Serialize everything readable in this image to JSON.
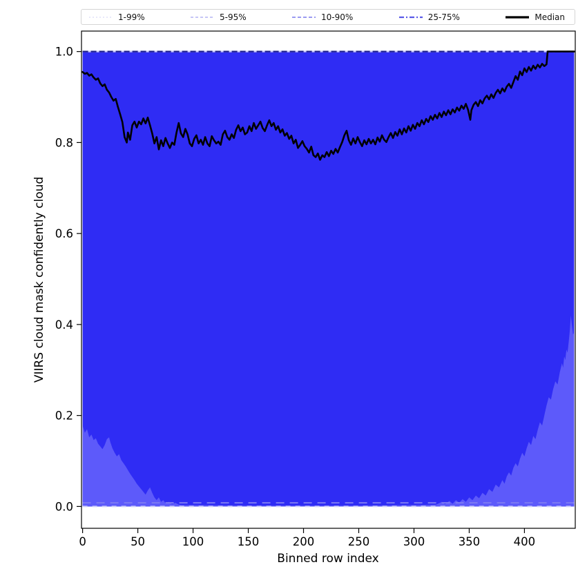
{
  "legend": {
    "entries": [
      {
        "label": "1-99%",
        "color": "#d9d9f8",
        "dash": "2 3",
        "width": 1.3
      },
      {
        "label": "5-95%",
        "color": "#b4b4f3",
        "dash": "4 3",
        "width": 1.4
      },
      {
        "label": "10-90%",
        "color": "#8c8cef",
        "dash": "5 3",
        "width": 1.7
      },
      {
        "label": "25-75%",
        "color": "#5959e8",
        "dash": "7 3 2 3",
        "width": 2.2
      },
      {
        "label": "Median",
        "color": "#000000",
        "dash": "",
        "width": 3.2
      }
    ]
  },
  "chart_data": {
    "type": "line",
    "subtype": "fan-chart (median with percentile bands)",
    "title": "",
    "xlabel": "Binned row index",
    "ylabel": "VIIRS cloud mask confidently cloud",
    "xlim": [
      -1,
      446
    ],
    "ylim": [
      -0.048,
      1.045
    ],
    "x_data_range": [
      0,
      445
    ],
    "xticks": [
      0,
      50,
      100,
      150,
      200,
      250,
      300,
      350,
      400
    ],
    "yticks": [
      0.0,
      0.2,
      0.4,
      0.6,
      0.8,
      1.0
    ],
    "ytick_labels": [
      "0.0",
      "0.2",
      "0.4",
      "0.6",
      "0.8",
      "1.0"
    ],
    "grid": false,
    "legend_position": "top, outside axes, horizontal",
    "colors": {
      "fill_dark": "#2f2cf4",
      "fill_light": "#5d5afa",
      "top_dash_navy": "#1d1d8f",
      "top_dash_light": "#c4c4f8",
      "bottom_dash_mid": "#7d7af2",
      "bottom_dash_light": "#cfcffb",
      "median_line": "#000000"
    },
    "percentile_bands": {
      "upper_bound_all_percentiles": 1.0,
      "p1_lower_approx": 0.0,
      "p5_lower": [
        [
          0,
          0.178
        ],
        [
          2,
          0.162
        ],
        [
          4,
          0.17
        ],
        [
          6,
          0.152
        ],
        [
          8,
          0.158
        ],
        [
          10,
          0.146
        ],
        [
          12,
          0.15
        ],
        [
          14,
          0.138
        ],
        [
          16,
          0.132
        ],
        [
          18,
          0.126
        ],
        [
          20,
          0.135
        ],
        [
          22,
          0.148
        ],
        [
          24,
          0.152
        ],
        [
          25,
          0.142
        ],
        [
          27,
          0.128
        ],
        [
          29,
          0.118
        ],
        [
          31,
          0.11
        ],
        [
          33,
          0.115
        ],
        [
          35,
          0.102
        ],
        [
          37,
          0.095
        ],
        [
          39,
          0.088
        ],
        [
          41,
          0.08
        ],
        [
          43,
          0.072
        ],
        [
          45,
          0.065
        ],
        [
          47,
          0.058
        ],
        [
          49,
          0.05
        ],
        [
          51,
          0.044
        ],
        [
          53,
          0.038
        ],
        [
          55,
          0.032
        ],
        [
          57,
          0.026
        ],
        [
          59,
          0.035
        ],
        [
          61,
          0.042
        ],
        [
          63,
          0.03
        ],
        [
          65,
          0.02
        ],
        [
          67,
          0.014
        ],
        [
          69,
          0.02
        ],
        [
          71,
          0.01
        ],
        [
          73,
          0.014
        ],
        [
          75,
          0.007
        ],
        [
          78,
          0.01
        ],
        [
          81,
          0.005
        ],
        [
          84,
          0.008
        ],
        [
          87,
          0.004
        ],
        [
          90,
          0.003
        ],
        [
          100,
          0.003
        ],
        [
          150,
          0.002
        ],
        [
          200,
          0.002
        ],
        [
          250,
          0.002
        ],
        [
          300,
          0.003
        ],
        [
          320,
          0.004
        ],
        [
          325,
          0.01
        ],
        [
          328,
          0.005
        ],
        [
          332,
          0.012
        ],
        [
          335,
          0.006
        ],
        [
          338,
          0.014
        ],
        [
          341,
          0.008
        ],
        [
          344,
          0.016
        ],
        [
          347,
          0.01
        ],
        [
          350,
          0.02
        ],
        [
          353,
          0.014
        ],
        [
          356,
          0.024
        ],
        [
          359,
          0.018
        ],
        [
          362,
          0.03
        ],
        [
          365,
          0.024
        ],
        [
          368,
          0.038
        ],
        [
          371,
          0.032
        ],
        [
          374,
          0.048
        ],
        [
          377,
          0.042
        ],
        [
          380,
          0.058
        ],
        [
          382,
          0.05
        ],
        [
          384,
          0.066
        ],
        [
          386,
          0.075
        ],
        [
          388,
          0.068
        ],
        [
          390,
          0.085
        ],
        [
          392,
          0.095
        ],
        [
          394,
          0.088
        ],
        [
          396,
          0.105
        ],
        [
          398,
          0.118
        ],
        [
          400,
          0.11
        ],
        [
          402,
          0.128
        ],
        [
          404,
          0.142
        ],
        [
          406,
          0.135
        ],
        [
          408,
          0.155
        ],
        [
          410,
          0.148
        ],
        [
          412,
          0.168
        ],
        [
          414,
          0.185
        ],
        [
          416,
          0.178
        ],
        [
          418,
          0.2
        ],
        [
          420,
          0.222
        ],
        [
          422,
          0.24
        ],
        [
          424,
          0.235
        ],
        [
          426,
          0.258
        ],
        [
          428,
          0.275
        ],
        [
          430,
          0.268
        ],
        [
          432,
          0.295
        ],
        [
          434,
          0.315
        ],
        [
          435,
          0.305
        ],
        [
          436,
          0.33
        ],
        [
          437,
          0.322
        ],
        [
          438,
          0.345
        ],
        [
          439,
          0.338
        ],
        [
          440,
          0.36
        ],
        [
          441,
          0.385
        ],
        [
          442,
          0.42
        ],
        [
          443,
          0.398
        ],
        [
          444,
          0.378
        ],
        [
          445,
          0.382
        ]
      ]
    },
    "median": [
      [
        0,
        0.955
      ],
      [
        2,
        0.951
      ],
      [
        4,
        0.953
      ],
      [
        6,
        0.947
      ],
      [
        8,
        0.95
      ],
      [
        10,
        0.943
      ],
      [
        12,
        0.938
      ],
      [
        14,
        0.941
      ],
      [
        16,
        0.93
      ],
      [
        18,
        0.924
      ],
      [
        20,
        0.928
      ],
      [
        22,
        0.916
      ],
      [
        24,
        0.91
      ],
      [
        26,
        0.9
      ],
      [
        28,
        0.892
      ],
      [
        30,
        0.896
      ],
      [
        32,
        0.878
      ],
      [
        34,
        0.862
      ],
      [
        36,
        0.845
      ],
      [
        38,
        0.812
      ],
      [
        40,
        0.8
      ],
      [
        41,
        0.822
      ],
      [
        43,
        0.806
      ],
      [
        45,
        0.838
      ],
      [
        47,
        0.846
      ],
      [
        49,
        0.833
      ],
      [
        51,
        0.846
      ],
      [
        53,
        0.84
      ],
      [
        55,
        0.853
      ],
      [
        57,
        0.842
      ],
      [
        59,
        0.855
      ],
      [
        61,
        0.838
      ],
      [
        63,
        0.82
      ],
      [
        65,
        0.798
      ],
      [
        67,
        0.812
      ],
      [
        69,
        0.785
      ],
      [
        71,
        0.805
      ],
      [
        73,
        0.792
      ],
      [
        75,
        0.81
      ],
      [
        77,
        0.798
      ],
      [
        79,
        0.788
      ],
      [
        81,
        0.8
      ],
      [
        83,
        0.795
      ],
      [
        85,
        0.822
      ],
      [
        87,
        0.843
      ],
      [
        89,
        0.82
      ],
      [
        91,
        0.812
      ],
      [
        93,
        0.83
      ],
      [
        95,
        0.818
      ],
      [
        97,
        0.798
      ],
      [
        99,
        0.792
      ],
      [
        101,
        0.808
      ],
      [
        103,
        0.816
      ],
      [
        105,
        0.798
      ],
      [
        107,
        0.806
      ],
      [
        109,
        0.795
      ],
      [
        111,
        0.812
      ],
      [
        113,
        0.798
      ],
      [
        115,
        0.792
      ],
      [
        117,
        0.814
      ],
      [
        119,
        0.805
      ],
      [
        121,
        0.798
      ],
      [
        123,
        0.802
      ],
      [
        125,
        0.795
      ],
      [
        127,
        0.818
      ],
      [
        129,
        0.826
      ],
      [
        131,
        0.812
      ],
      [
        133,
        0.806
      ],
      [
        135,
        0.818
      ],
      [
        137,
        0.81
      ],
      [
        139,
        0.828
      ],
      [
        141,
        0.838
      ],
      [
        143,
        0.825
      ],
      [
        145,
        0.833
      ],
      [
        147,
        0.818
      ],
      [
        149,
        0.822
      ],
      [
        151,
        0.836
      ],
      [
        153,
        0.825
      ],
      [
        155,
        0.843
      ],
      [
        157,
        0.83
      ],
      [
        159,
        0.838
      ],
      [
        161,
        0.846
      ],
      [
        163,
        0.832
      ],
      [
        165,
        0.825
      ],
      [
        167,
        0.838
      ],
      [
        169,
        0.849
      ],
      [
        171,
        0.836
      ],
      [
        173,
        0.843
      ],
      [
        175,
        0.828
      ],
      [
        177,
        0.836
      ],
      [
        179,
        0.822
      ],
      [
        181,
        0.829
      ],
      [
        183,
        0.815
      ],
      [
        185,
        0.821
      ],
      [
        187,
        0.808
      ],
      [
        189,
        0.815
      ],
      [
        191,
        0.798
      ],
      [
        193,
        0.806
      ],
      [
        195,
        0.788
      ],
      [
        197,
        0.795
      ],
      [
        199,
        0.803
      ],
      [
        201,
        0.792
      ],
      [
        203,
        0.786
      ],
      [
        205,
        0.778
      ],
      [
        207,
        0.791
      ],
      [
        209,
        0.772
      ],
      [
        211,
        0.768
      ],
      [
        213,
        0.776
      ],
      [
        215,
        0.762
      ],
      [
        217,
        0.772
      ],
      [
        219,
        0.768
      ],
      [
        221,
        0.779
      ],
      [
        223,
        0.77
      ],
      [
        225,
        0.782
      ],
      [
        227,
        0.775
      ],
      [
        229,
        0.786
      ],
      [
        231,
        0.778
      ],
      [
        233,
        0.79
      ],
      [
        235,
        0.801
      ],
      [
        237,
        0.816
      ],
      [
        239,
        0.826
      ],
      [
        241,
        0.805
      ],
      [
        243,
        0.795
      ],
      [
        245,
        0.809
      ],
      [
        247,
        0.798
      ],
      [
        249,
        0.812
      ],
      [
        251,
        0.801
      ],
      [
        253,
        0.792
      ],
      [
        255,
        0.805
      ],
      [
        257,
        0.796
      ],
      [
        259,
        0.808
      ],
      [
        261,
        0.798
      ],
      [
        263,
        0.806
      ],
      [
        265,
        0.796
      ],
      [
        267,
        0.811
      ],
      [
        269,
        0.802
      ],
      [
        271,
        0.816
      ],
      [
        273,
        0.806
      ],
      [
        275,
        0.801
      ],
      [
        277,
        0.812
      ],
      [
        279,
        0.821
      ],
      [
        281,
        0.81
      ],
      [
        283,
        0.823
      ],
      [
        285,
        0.815
      ],
      [
        287,
        0.829
      ],
      [
        289,
        0.818
      ],
      [
        291,
        0.831
      ],
      [
        293,
        0.822
      ],
      [
        295,
        0.836
      ],
      [
        297,
        0.826
      ],
      [
        299,
        0.839
      ],
      [
        301,
        0.83
      ],
      [
        303,
        0.843
      ],
      [
        305,
        0.836
      ],
      [
        307,
        0.849
      ],
      [
        309,
        0.84
      ],
      [
        311,
        0.852
      ],
      [
        313,
        0.845
      ],
      [
        315,
        0.858
      ],
      [
        317,
        0.85
      ],
      [
        319,
        0.861
      ],
      [
        321,
        0.853
      ],
      [
        323,
        0.865
      ],
      [
        325,
        0.856
      ],
      [
        327,
        0.868
      ],
      [
        329,
        0.86
      ],
      [
        331,
        0.871
      ],
      [
        333,
        0.862
      ],
      [
        335,
        0.873
      ],
      [
        337,
        0.866
      ],
      [
        339,
        0.877
      ],
      [
        341,
        0.87
      ],
      [
        343,
        0.881
      ],
      [
        345,
        0.874
      ],
      [
        347,
        0.885
      ],
      [
        349,
        0.872
      ],
      [
        351,
        0.85
      ],
      [
        352,
        0.871
      ],
      [
        354,
        0.883
      ],
      [
        356,
        0.889
      ],
      [
        358,
        0.88
      ],
      [
        360,
        0.893
      ],
      [
        362,
        0.886
      ],
      [
        364,
        0.897
      ],
      [
        366,
        0.903
      ],
      [
        368,
        0.895
      ],
      [
        370,
        0.906
      ],
      [
        372,
        0.898
      ],
      [
        374,
        0.909
      ],
      [
        376,
        0.916
      ],
      [
        378,
        0.908
      ],
      [
        380,
        0.919
      ],
      [
        382,
        0.912
      ],
      [
        384,
        0.923
      ],
      [
        386,
        0.929
      ],
      [
        388,
        0.92
      ],
      [
        390,
        0.933
      ],
      [
        392,
        0.946
      ],
      [
        394,
        0.938
      ],
      [
        396,
        0.956
      ],
      [
        398,
        0.948
      ],
      [
        400,
        0.963
      ],
      [
        402,
        0.955
      ],
      [
        404,
        0.966
      ],
      [
        406,
        0.958
      ],
      [
        408,
        0.969
      ],
      [
        410,
        0.962
      ],
      [
        412,
        0.971
      ],
      [
        414,
        0.965
      ],
      [
        416,
        0.973
      ],
      [
        418,
        0.968
      ],
      [
        420,
        0.972
      ],
      [
        421,
        1.0
      ],
      [
        445,
        1.0
      ]
    ]
  }
}
